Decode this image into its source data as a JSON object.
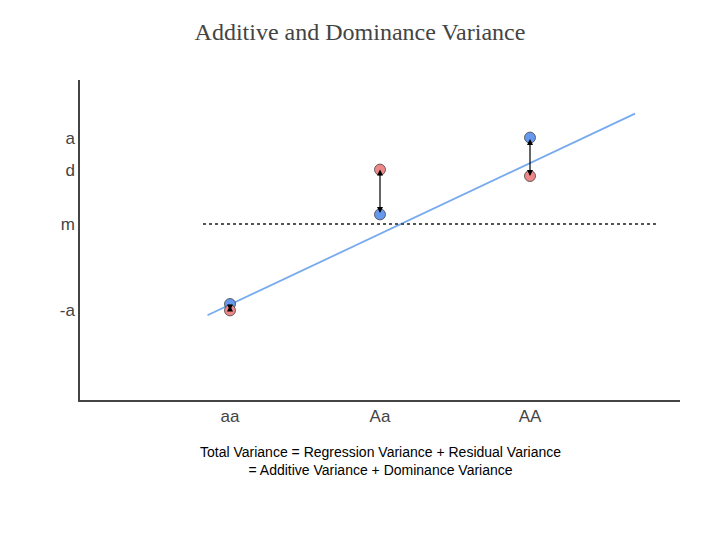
{
  "chart_data": {
    "type": "scatter",
    "title": "Additive and Dominance Variance",
    "xlim": [
      0,
      4
    ],
    "ylim": [
      0,
      10
    ],
    "xticks": [
      {
        "value": 1,
        "label": "aa"
      },
      {
        "value": 2,
        "label": "Aa"
      },
      {
        "value": 3,
        "label": "AA"
      }
    ],
    "yticks": [
      {
        "value": 8.2,
        "label": "a"
      },
      {
        "value": 7.2,
        "label": "d"
      },
      {
        "value": 5.5,
        "label": "m"
      },
      {
        "value": 2.8,
        "label": "-a"
      }
    ],
    "grid": false,
    "series": [
      {
        "type": "line",
        "color": "#77aaee",
        "line_style": "solid",
        "x": [
          0.85,
          3.7
        ],
        "values": [
          2.65,
          8.95
        ]
      },
      {
        "type": "line",
        "color": "#555555",
        "line_style": "dotted",
        "x": [
          0.82,
          3.85
        ],
        "values": [
          5.5,
          5.5
        ]
      },
      {
        "type": "scatter",
        "color": "#6699ee",
        "marker": "circle",
        "x": [
          1.0,
          2.0,
          3.0
        ],
        "values": [
          3.0,
          5.8,
          8.2
        ]
      },
      {
        "type": "scatter",
        "color": "#ee8888",
        "marker": "circle",
        "x": [
          1.0,
          2.0,
          3.0
        ],
        "values": [
          2.8,
          7.2,
          7.0
        ]
      }
    ],
    "annotations": [
      "Total Variance = Regression Variance + Residual Variance",
      "= Additive Variance + Dominance Variance"
    ]
  }
}
